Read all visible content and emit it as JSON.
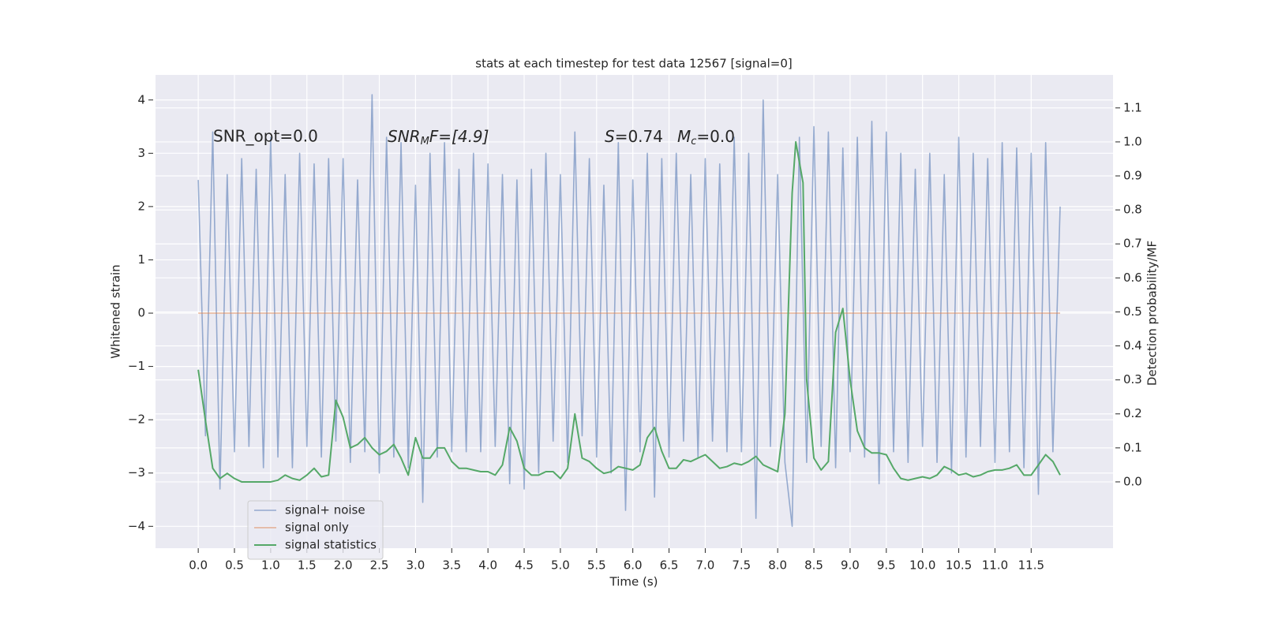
{
  "chart_data": {
    "type": "line",
    "title": "stats at each timestep for test data 12567 [signal=0]",
    "xlabel": "Time (s)",
    "ylabel": "Whitened strain",
    "y2label": "Detection probability/MF",
    "annotations": [
      {
        "text": "SNR_opt=0.0"
      },
      {
        "base": "SNR",
        "sub": "M",
        "rest": "F=[4.9]"
      },
      {
        "base": "S",
        "rest": "=0.74"
      },
      {
        "base": "M",
        "sub": "c",
        "rest": "=0.0"
      }
    ],
    "grid": true,
    "legend_loc": "lower left",
    "xlim": [
      -0.59,
      12.63
    ],
    "ylim": [
      -4.41,
      4.47
    ],
    "y2lim": [
      -0.195,
      1.197
    ],
    "xticks": [
      {
        "value": 0,
        "label": "0.0"
      },
      0.5,
      {
        "value": 1,
        "label": "1.0"
      },
      1.5,
      {
        "value": 2,
        "label": "2.0"
      },
      2.5,
      {
        "value": 3,
        "label": "3.0"
      },
      3.5,
      {
        "value": 4,
        "label": "4.0"
      },
      4.5,
      {
        "value": 5,
        "label": "5.0"
      },
      5.5,
      {
        "value": 6,
        "label": "6.0"
      },
      6.5,
      {
        "value": 7,
        "label": "7.0"
      },
      7.5,
      {
        "value": 8,
        "label": "8.0"
      },
      8.5,
      {
        "value": 9,
        "label": "9.0"
      },
      9.5,
      {
        "value": 10,
        "label": "10.0"
      },
      10.5,
      {
        "value": 11,
        "label": "11.0"
      },
      11.5
    ],
    "yticks": [
      {
        "value": -4,
        "label": "−4"
      },
      {
        "value": -3,
        "label": "−3"
      },
      {
        "value": -2,
        "label": "−2"
      },
      {
        "value": -1,
        "label": "−1"
      },
      0,
      1,
      2,
      3,
      4
    ],
    "y2ticks": [
      {
        "value": 0,
        "label": "0.0"
      },
      0.1,
      0.2,
      0.3,
      0.4,
      0.5,
      0.6,
      0.7,
      0.8,
      0.9,
      {
        "value": 1,
        "label": "1.0"
      },
      1.1
    ],
    "x": [
      0.0,
      0.1,
      0.2,
      0.3,
      0.4,
      0.5,
      0.6,
      0.7,
      0.8,
      0.9,
      1.0,
      1.1,
      1.2,
      1.3,
      1.4,
      1.5,
      1.6,
      1.7,
      1.8,
      1.9,
      2.0,
      2.1,
      2.2,
      2.3,
      2.4,
      2.5,
      2.6,
      2.7,
      2.8,
      2.9,
      3.0,
      3.1,
      3.2,
      3.3,
      3.4,
      3.5,
      3.6,
      3.7,
      3.8,
      3.9,
      4.0,
      4.1,
      4.2,
      4.3,
      4.4,
      4.5,
      4.6,
      4.7,
      4.8,
      4.9,
      5.0,
      5.1,
      5.2,
      5.3,
      5.4,
      5.5,
      5.6,
      5.7,
      5.8,
      5.9,
      6.0,
      6.1,
      6.2,
      6.3,
      6.4,
      6.5,
      6.6,
      6.7,
      6.8,
      6.9,
      7.0,
      7.1,
      7.2,
      7.3,
      7.4,
      7.5,
      7.6,
      7.7,
      7.8,
      7.9,
      8.0,
      8.1,
      8.2,
      8.3,
      8.4,
      8.5,
      8.6,
      8.7,
      8.8,
      8.9,
      9.0,
      9.1,
      9.2,
      9.3,
      9.4,
      9.5,
      9.6,
      9.7,
      9.8,
      9.9,
      10.0,
      10.1,
      10.2,
      10.3,
      10.4,
      10.5,
      10.6,
      10.7,
      10.8,
      10.9,
      11.0,
      11.1,
      11.2,
      11.3,
      11.4,
      11.5,
      11.6,
      11.7,
      11.8,
      11.9
    ],
    "series": [
      {
        "name": "signal+ noise",
        "color": "#4c72b0",
        "values": [
          2.5,
          -2.3,
          3.4,
          -3.3,
          2.6,
          -2.6,
          2.9,
          -2.5,
          2.7,
          -2.9,
          3.3,
          -2.7,
          2.6,
          -2.9,
          3.0,
          -2.5,
          2.8,
          -2.7,
          2.9,
          -2.4,
          2.9,
          -2.8,
          2.5,
          -2.6,
          4.1,
          -3.0,
          3.3,
          -2.7,
          3.2,
          -2.9,
          2.4,
          -3.55,
          3.0,
          -2.7,
          3.2,
          -2.6,
          2.7,
          -2.6,
          3.0,
          -2.6,
          2.8,
          -2.5,
          2.6,
          -3.2,
          2.5,
          -3.3,
          2.7,
          -3.0,
          3.0,
          -2.4,
          2.6,
          -2.8,
          3.4,
          -2.3,
          2.9,
          -2.7,
          2.4,
          -3.0,
          3.2,
          -3.7,
          2.5,
          -2.6,
          3.0,
          -3.45,
          2.9,
          -2.7,
          3.0,
          -2.4,
          2.6,
          -2.7,
          2.9,
          -2.4,
          2.8,
          -2.6,
          3.3,
          -2.6,
          3.0,
          -3.85,
          4.0,
          -2.5,
          2.6,
          -2.8,
          -4.0,
          3.3,
          -2.8,
          3.5,
          -2.5,
          3.4,
          -2.9,
          3.1,
          -2.6,
          3.3,
          -2.7,
          3.6,
          -3.2,
          3.4,
          -2.6,
          3.0,
          -2.8,
          2.7,
          -2.5,
          3.0,
          -2.8,
          2.6,
          -3.0,
          3.3,
          -2.7,
          3.0,
          -2.5,
          2.9,
          -2.8,
          3.2,
          -2.6,
          3.1,
          -2.9,
          3.0,
          -3.4,
          3.2,
          -2.6,
          2.0
        ]
      },
      {
        "name": "signal only",
        "color": "#dd8452",
        "values": [
          0,
          0,
          0,
          0,
          0,
          0,
          0,
          0,
          0,
          0,
          0,
          0,
          0,
          0,
          0,
          0,
          0,
          0,
          0,
          0,
          0,
          0,
          0,
          0,
          0,
          0,
          0,
          0,
          0,
          0,
          0,
          0,
          0,
          0,
          0,
          0,
          0,
          0,
          0,
          0,
          0,
          0,
          0,
          0,
          0,
          0,
          0,
          0,
          0,
          0,
          0,
          0,
          0,
          0,
          0,
          0,
          0,
          0,
          0,
          0,
          0,
          0,
          0,
          0,
          0,
          0,
          0,
          0,
          0,
          0,
          0,
          0,
          0,
          0,
          0,
          0,
          0,
          0,
          0,
          0,
          0,
          0,
          0,
          0,
          0,
          0,
          0,
          0,
          0,
          0,
          0,
          0,
          0,
          0,
          0,
          0,
          0,
          0,
          0,
          0,
          0,
          0,
          0,
          0,
          0,
          0,
          0,
          0,
          0,
          0,
          0,
          0,
          0,
          0,
          0,
          0,
          0,
          0,
          0,
          0
        ]
      },
      {
        "name": "signal statistics",
        "color": "#55a868",
        "axis": "y2",
        "x": [
          0.0,
          0.1,
          0.2,
          0.3,
          0.4,
          0.5,
          0.6,
          0.7,
          0.8,
          0.9,
          1.0,
          1.1,
          1.2,
          1.3,
          1.4,
          1.5,
          1.6,
          1.7,
          1.8,
          1.9,
          2.0,
          2.1,
          2.2,
          2.3,
          2.4,
          2.5,
          2.6,
          2.7,
          2.8,
          2.9,
          3.0,
          3.1,
          3.2,
          3.3,
          3.4,
          3.5,
          3.6,
          3.7,
          3.8,
          3.9,
          4.0,
          4.1,
          4.2,
          4.3,
          4.4,
          4.5,
          4.6,
          4.7,
          4.8,
          4.9,
          5.0,
          5.1,
          5.2,
          5.3,
          5.4,
          5.5,
          5.6,
          5.7,
          5.8,
          5.9,
          6.0,
          6.1,
          6.2,
          6.3,
          6.4,
          6.5,
          6.6,
          6.7,
          6.8,
          6.9,
          7.0,
          7.1,
          7.2,
          7.3,
          7.4,
          7.5,
          7.6,
          7.7,
          7.8,
          7.9,
          8.0,
          8.1,
          8.2,
          8.25,
          8.35,
          8.4,
          8.5,
          8.6,
          8.7,
          8.8,
          8.9,
          9.0,
          9.1,
          9.2,
          9.3,
          9.4,
          9.5,
          9.6,
          9.7,
          9.8,
          9.9,
          10.0,
          10.1,
          10.2,
          10.3,
          10.4,
          10.5,
          10.6,
          10.7,
          10.8,
          10.9,
          11.0,
          11.1,
          11.2,
          11.3,
          11.4,
          11.5,
          11.6,
          11.7,
          11.8,
          11.9
        ],
        "values": [
          0.33,
          0.18,
          0.04,
          0.01,
          0.025,
          0.01,
          0.0,
          0.0,
          0.0,
          0.0,
          0.0,
          0.005,
          0.02,
          0.01,
          0.005,
          0.02,
          0.04,
          0.015,
          0.02,
          0.24,
          0.19,
          0.1,
          0.11,
          0.13,
          0.1,
          0.08,
          0.09,
          0.11,
          0.07,
          0.02,
          0.13,
          0.07,
          0.07,
          0.1,
          0.1,
          0.06,
          0.04,
          0.04,
          0.035,
          0.03,
          0.03,
          0.02,
          0.05,
          0.16,
          0.12,
          0.04,
          0.02,
          0.02,
          0.03,
          0.03,
          0.01,
          0.04,
          0.2,
          0.07,
          0.06,
          0.04,
          0.025,
          0.03,
          0.045,
          0.04,
          0.035,
          0.05,
          0.13,
          0.16,
          0.09,
          0.04,
          0.04,
          0.065,
          0.06,
          0.07,
          0.08,
          0.06,
          0.04,
          0.045,
          0.055,
          0.05,
          0.06,
          0.075,
          0.05,
          0.04,
          0.03,
          0.2,
          0.85,
          1.0,
          0.88,
          0.3,
          0.07,
          0.035,
          0.06,
          0.44,
          0.51,
          0.3,
          0.15,
          0.1,
          0.085,
          0.085,
          0.08,
          0.04,
          0.01,
          0.005,
          0.01,
          0.015,
          0.01,
          0.02,
          0.045,
          0.035,
          0.02,
          0.025,
          0.015,
          0.02,
          0.03,
          0.035,
          0.035,
          0.04,
          0.05,
          0.02,
          0.02,
          0.05,
          0.08,
          0.06,
          0.02
        ]
      }
    ]
  }
}
